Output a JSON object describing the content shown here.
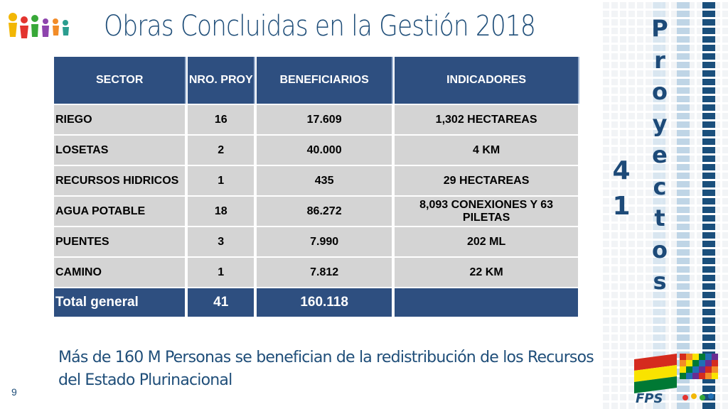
{
  "title": "Obras Concluidas en la Gestión 2018",
  "table": {
    "headers": [
      "SECTOR",
      "NRO. PROY",
      "BENEFICIARIOS",
      "INDICADORES"
    ],
    "rows": [
      {
        "sector": "RIEGO",
        "nro": "16",
        "beneficiarios": "17.609",
        "indicadores": "1,302 HECTAREAS"
      },
      {
        "sector": "LOSETAS",
        "nro": "2",
        "beneficiarios": "40.000",
        "indicadores": "4 KM"
      },
      {
        "sector": "RECURSOS HIDRICOS",
        "nro": "1",
        "beneficiarios": "435",
        "indicadores": "29 HECTAREAS"
      },
      {
        "sector": "AGUA POTABLE",
        "nro": "18",
        "beneficiarios": "86.272",
        "indicadores": "8,093 CONEXIONES Y 63 PILETAS"
      },
      {
        "sector": "PUENTES",
        "nro": "3",
        "beneficiarios": "7.990",
        "indicadores": "202 ML"
      },
      {
        "sector": "CAMINO",
        "nro": "1",
        "beneficiarios": "7.812",
        "indicadores": "22 KM"
      }
    ],
    "total": {
      "sector": "Total general",
      "nro": "41",
      "beneficiarios": "160.118",
      "indicadores": ""
    }
  },
  "side_word": [
    "P",
    "r",
    "o",
    "y",
    "e",
    "c",
    "t",
    "o",
    "s"
  ],
  "side_count": [
    "4",
    "1"
  ],
  "footer_text": "Más de 160 M Personas se benefician de la redistribución de los Recursos del Estado Plurinacional",
  "page_number": "9",
  "logo_text": "FPS",
  "colors": {
    "header_bg": "#2e4f80",
    "cell_bg": "#d4d4d4",
    "title": "#1f4e79",
    "accent": "#1d4a78"
  }
}
